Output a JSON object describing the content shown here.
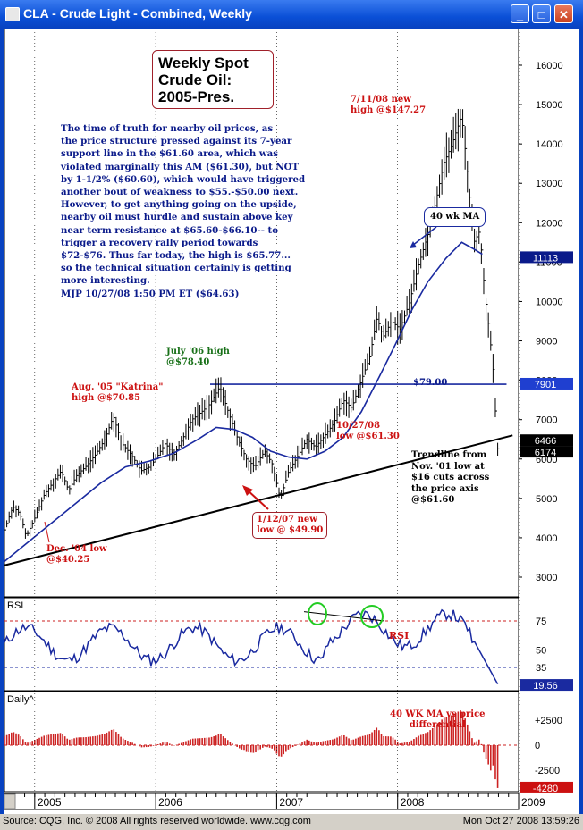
{
  "window": {
    "title": "CLA - Crude Light - Combined, Weekly",
    "buttons": [
      "_",
      "□",
      "✕"
    ]
  },
  "title_box": "Weekly Spot\nCrude Oil:\n2005-Pres.",
  "commentary": "The time of truth for nearby oil prices, as\nthe price structure pressed against its 7-year\nsupport line in the $61.60 area, which was\nviolated marginally this AM ($61.30), but NOT\nby 1-1/2% ($60.60), which would have triggered\nanother bout of weakness to $55.-$50.00 next.\nHowever, to get anything going on the upside,\nnearby oil must hurdle and sustain above key\nnear term resistance at $65.60-$66.10-- to\ntrigger a recovery rally period towards\n$72-$76. Thus far today, the high is $65.77...\nso the technical situation certainly is getting\nmore interesting.\nMJP 10/27/08  1:50 PM ET  ($64.63)",
  "annotations": {
    "high_2008": "7/11/08 new\nhigh @$147.27",
    "ma_label": "40 wk MA",
    "july06": "July '06 high\n@$78.40",
    "katrina": "Aug. '05 \"Katrina\"\nhigh @$70.85",
    "level_79": "$79.00",
    "low_2008": "10/27/08\nlow @$61.30",
    "trendline": "Trendline from\nNov. '01 low at\n$16 cuts across\nthe price axis\n@$61.60",
    "low_2007": "1/12/07 new\nlow @ $49.90",
    "low_2004": "Dec. '04 low\n@$40.25",
    "rsi_label": "RSI",
    "diff_label": "40 WK MA vs price\ndifferential"
  },
  "price_axis": [
    "16000",
    "15000",
    "14000",
    "13000",
    "12000",
    "11000",
    "10000",
    "9000",
    "8000",
    "7000",
    "6000",
    "5000",
    "4000",
    "3000"
  ],
  "price_tags": [
    {
      "value": "11113",
      "price": 11113,
      "bg": "#0a1a8a",
      "fg": "#ffffff"
    },
    {
      "value": "7901",
      "price": 7901,
      "bg": "#1f3fd0",
      "fg": "#ffffff"
    },
    {
      "value": "6466",
      "price": 6466,
      "bg": "#000000",
      "fg": "#ffffff"
    },
    {
      "value": "6174",
      "price": 6174,
      "bg": "#000000",
      "fg": "#ffffff"
    }
  ],
  "rsi_panel": {
    "title": "RSI",
    "axis": [
      "75",
      "50",
      "35"
    ],
    "tag": "19.56"
  },
  "daily_panel": {
    "title": "Daily^",
    "axis": [
      "+2500",
      "0",
      "-2500"
    ],
    "tag": "-4280"
  },
  "time_axis": [
    "2005",
    "2006",
    "2007",
    "2008",
    "2009"
  ],
  "status": {
    "source": "Source: CQG, Inc. © 2008 All rights reserved worldwide.  www.cqg.com",
    "time": "Mon Oct 27 2008 13:59:26"
  },
  "colors": {
    "price": "#000000",
    "ma": "#1a2aa0",
    "rsi": "#1a2aa0",
    "guide": "#cc2222",
    "hist": "#cc2222"
  },
  "chart_data": {
    "type": "line",
    "title": "CLA - Crude Light - Combined, Weekly",
    "ylim": [
      2500,
      16600
    ],
    "x_range": [
      2004.75,
      2009.0
    ],
    "key_points": [
      {
        "date": 2004.93,
        "price": 4025,
        "label": "Dec. '04 low"
      },
      {
        "date": 2005.65,
        "price": 7085,
        "label": "Aug. '05 Katrina high"
      },
      {
        "date": 2006.53,
        "price": 7840,
        "label": "July '06 high"
      },
      {
        "date": 2007.03,
        "price": 4990,
        "label": "1/12/07 new low"
      },
      {
        "date": 2008.53,
        "price": 14727,
        "label": "7/11/08 new high"
      },
      {
        "date": 2008.82,
        "price": 6130,
        "label": "10/27/08 low"
      }
    ],
    "price_path": [
      [
        2004.75,
        4200
      ],
      [
        2004.82,
        4800
      ],
      [
        2004.88,
        4600
      ],
      [
        2004.93,
        4025
      ],
      [
        2005.0,
        4500
      ],
      [
        2005.08,
        5100
      ],
      [
        2005.15,
        5400
      ],
      [
        2005.22,
        5700
      ],
      [
        2005.28,
        5200
      ],
      [
        2005.35,
        5600
      ],
      [
        2005.42,
        5800
      ],
      [
        2005.5,
        6100
      ],
      [
        2005.58,
        6500
      ],
      [
        2005.65,
        7085
      ],
      [
        2005.72,
        6400
      ],
      [
        2005.8,
        6100
      ],
      [
        2005.88,
        5700
      ],
      [
        2005.95,
        5800
      ],
      [
        2006.0,
        6000
      ],
      [
        2006.08,
        6400
      ],
      [
        2006.15,
        6100
      ],
      [
        2006.22,
        6500
      ],
      [
        2006.3,
        7000
      ],
      [
        2006.38,
        7200
      ],
      [
        2006.45,
        7400
      ],
      [
        2006.53,
        7840
      ],
      [
        2006.6,
        7200
      ],
      [
        2006.68,
        6500
      ],
      [
        2006.75,
        6000
      ],
      [
        2006.82,
        5800
      ],
      [
        2006.9,
        6200
      ],
      [
        2006.96,
        5900
      ],
      [
        2007.03,
        4990
      ],
      [
        2007.1,
        5700
      ],
      [
        2007.18,
        6100
      ],
      [
        2007.25,
        6500
      ],
      [
        2007.32,
        6300
      ],
      [
        2007.4,
        6600
      ],
      [
        2007.47,
        6900
      ],
      [
        2007.55,
        7500
      ],
      [
        2007.62,
        7300
      ],
      [
        2007.7,
        8000
      ],
      [
        2007.77,
        8600
      ],
      [
        2007.83,
        9600
      ],
      [
        2007.88,
        9100
      ],
      [
        2007.95,
        9500
      ],
      [
        2008.02,
        9300
      ],
      [
        2008.1,
        10000
      ],
      [
        2008.17,
        10900
      ],
      [
        2008.25,
        11700
      ],
      [
        2008.32,
        12600
      ],
      [
        2008.38,
        13500
      ],
      [
        2008.45,
        14000
      ],
      [
        2008.53,
        14727
      ],
      [
        2008.58,
        13200
      ],
      [
        2008.63,
        11500
      ],
      [
        2008.68,
        11800
      ],
      [
        2008.72,
        10200
      ],
      [
        2008.76,
        9200
      ],
      [
        2008.8,
        7900
      ],
      [
        2008.82,
        6130
      ],
      [
        2008.84,
        6500
      ]
    ],
    "ma_40wk_path": [
      [
        2004.75,
        3400
      ],
      [
        2004.95,
        3900
      ],
      [
        2005.15,
        4400
      ],
      [
        2005.35,
        4900
      ],
      [
        2005.55,
        5400
      ],
      [
        2005.75,
        5800
      ],
      [
        2005.95,
        5950
      ],
      [
        2006.15,
        6150
      ],
      [
        2006.35,
        6500
      ],
      [
        2006.5,
        6800
      ],
      [
        2006.65,
        6750
      ],
      [
        2006.8,
        6550
      ],
      [
        2006.95,
        6200
      ],
      [
        2007.1,
        6050
      ],
      [
        2007.25,
        6000
      ],
      [
        2007.4,
        6200
      ],
      [
        2007.55,
        6550
      ],
      [
        2007.7,
        7200
      ],
      [
        2007.85,
        8100
      ],
      [
        2007.98,
        8900
      ],
      [
        2008.12,
        9800
      ],
      [
        2008.25,
        10500
      ],
      [
        2008.4,
        11100
      ],
      [
        2008.53,
        11500
      ],
      [
        2008.62,
        11350
      ],
      [
        2008.7,
        11200
      ]
    ],
    "trendline": [
      [
        2004.75,
        3300
      ],
      [
        2008.95,
        6600
      ]
    ],
    "resistance": {
      "price": 7900,
      "from": 2006.45,
      "to": 2008.9
    },
    "rsi": {
      "ylim": [
        15,
        95
      ],
      "guides": [
        75,
        35
      ],
      "last": 19.56
    },
    "differential": {
      "ylim": [
        -5000,
        5000
      ],
      "last": -4280
    }
  }
}
